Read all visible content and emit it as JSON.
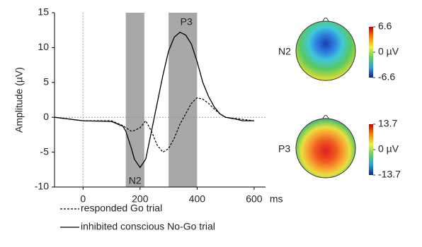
{
  "chart_data": {
    "type": "line",
    "y_label": "Amplitude (µV)",
    "x_label": "ms",
    "x": [
      -100,
      0,
      100,
      140,
      150,
      170,
      180,
      200,
      220,
      240,
      260,
      280,
      300,
      320,
      340,
      360,
      380,
      400,
      420,
      440,
      460,
      480,
      500,
      540,
      560,
      580,
      600
    ],
    "series": [
      {
        "name": "responded Go trial",
        "color": "#000000",
        "style": "dashed",
        "values": [
          0,
          -0.5,
          -0.5,
          -1.2,
          -1.5,
          -2,
          -1.9,
          -1.5,
          -0.5,
          -2,
          -4,
          -5,
          -4.5,
          -3,
          -1,
          0.5,
          2,
          2.8,
          2.6,
          2,
          1.2,
          0.5,
          0,
          -0.2,
          -0.3,
          -0.4,
          -0.5
        ]
      },
      {
        "name": "inhibited conscious No-Go trial",
        "color": "#000000",
        "style": "solid",
        "values": [
          0,
          -0.5,
          -0.6,
          -1.3,
          -2,
          -4.5,
          -6,
          -7.2,
          -6,
          -2,
          2,
          6,
          9.5,
          11.5,
          12.2,
          11.8,
          10.5,
          8,
          5,
          3,
          1.5,
          0.5,
          0,
          -0.3,
          -0.5,
          -0.5,
          -0.5
        ]
      }
    ],
    "xlim": [
      -100,
      640
    ],
    "ylim": [
      -10,
      15
    ],
    "xticks": [
      0,
      200,
      400,
      600
    ],
    "yticks": [
      -10,
      -5,
      0,
      5,
      10,
      15
    ],
    "windows": [
      {
        "start": 150,
        "end": 215,
        "label": "N2"
      },
      {
        "start": 300,
        "end": 400,
        "label": "P3"
      }
    ],
    "topomaps": [
      {
        "label": "N2",
        "clim": [
          -6.6,
          6.6
        ],
        "ticks": [
          6.6,
          {
            "value": 0,
            "label": "0 µV"
          },
          -6.6
        ]
      },
      {
        "label": "P3",
        "clim": [
          -13.7,
          13.7
        ],
        "ticks": [
          13.7,
          {
            "value": 0,
            "label": "0 µV"
          },
          -13.7
        ]
      }
    ]
  }
}
